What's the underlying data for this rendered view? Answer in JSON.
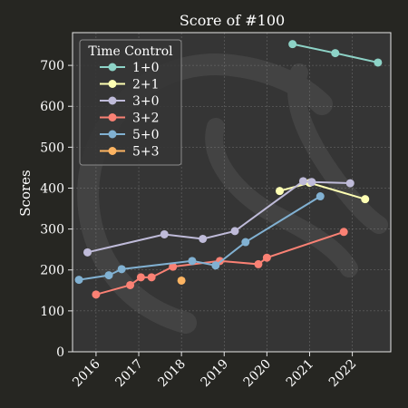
{
  "chart_data": {
    "type": "line",
    "title": "Score of #100",
    "xlabel": "",
    "ylabel": "Scores",
    "xlim": [
      2015.45,
      2022.9
    ],
    "ylim": [
      0,
      780
    ],
    "x_ticks": [
      "2016",
      "2017",
      "2018",
      "2019",
      "2020",
      "2021",
      "2022"
    ],
    "y_ticks": [
      "0",
      "100",
      "200",
      "300",
      "400",
      "500",
      "600",
      "700"
    ],
    "grid": true,
    "legend": {
      "title": "Time Control",
      "placement": "top-left"
    },
    "series": [
      {
        "name": "1+0",
        "color": "#8dd3c7",
        "points": [
          [
            2020.6,
            752
          ],
          [
            2021.6,
            730
          ],
          [
            2022.6,
            707
          ]
        ]
      },
      {
        "name": "2+1",
        "color": "#feffb3",
        "points": [
          [
            2020.3,
            393
          ],
          [
            2021.0,
            413
          ],
          [
            2022.3,
            373
          ]
        ]
      },
      {
        "name": "3+0",
        "color": "#bfbbd9",
        "points": [
          [
            2015.8,
            243
          ],
          [
            2017.6,
            287
          ],
          [
            2018.5,
            276
          ],
          [
            2019.25,
            295
          ],
          [
            2020.85,
            417
          ],
          [
            2021.05,
            415
          ],
          [
            2021.95,
            412
          ]
        ]
      },
      {
        "name": "3+2",
        "color": "#fa8174",
        "points": [
          [
            2016.0,
            140
          ],
          [
            2016.8,
            163
          ],
          [
            2017.05,
            182
          ],
          [
            2017.3,
            182
          ],
          [
            2017.8,
            208
          ],
          [
            2018.9,
            222
          ],
          [
            2019.8,
            214
          ],
          [
            2020.0,
            230
          ],
          [
            2021.8,
            293
          ]
        ]
      },
      {
        "name": "5+0",
        "color": "#81b1d2",
        "points": [
          [
            2015.6,
            176
          ],
          [
            2016.3,
            187
          ],
          [
            2016.6,
            202
          ],
          [
            2018.25,
            222
          ],
          [
            2018.8,
            211
          ],
          [
            2019.5,
            268
          ],
          [
            2021.25,
            380
          ]
        ]
      },
      {
        "name": "5+3",
        "color": "#fdb462",
        "points": [
          [
            2018.0,
            174
          ]
        ]
      }
    ]
  }
}
